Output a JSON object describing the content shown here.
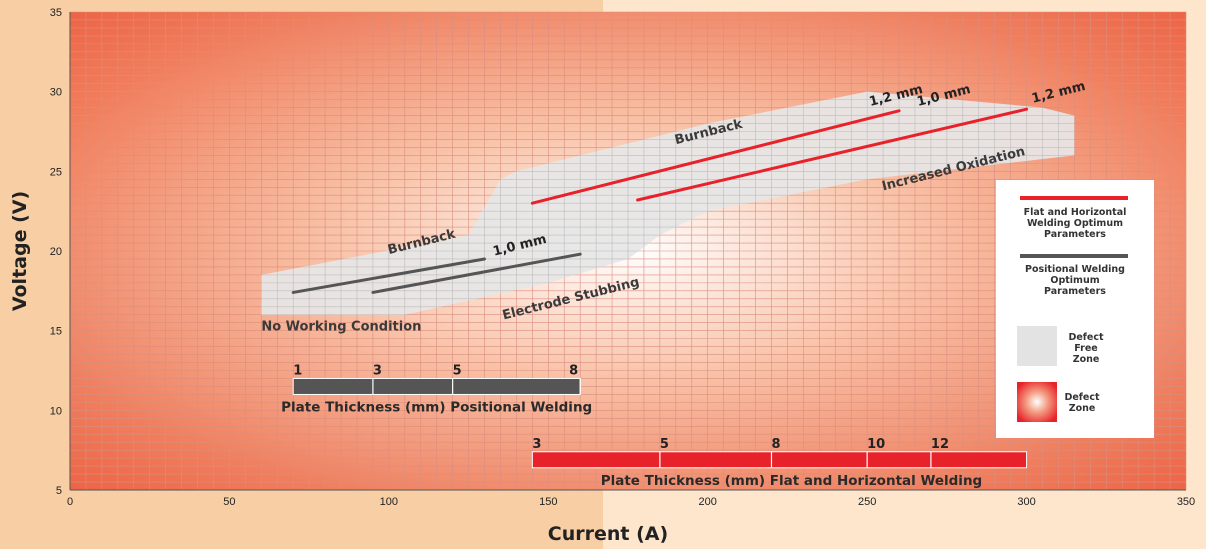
{
  "chart_data": {
    "type": "line",
    "xlabel": "Current (A)",
    "ylabel": "Voltage (V)",
    "xlim": [
      0,
      350
    ],
    "ylim": [
      5,
      35
    ],
    "x_ticks": [
      0,
      50,
      100,
      150,
      200,
      250,
      300,
      350
    ],
    "y_ticks": [
      5,
      10,
      15,
      20,
      25,
      30,
      35
    ],
    "grid": true,
    "defect_free_zone": [
      [
        60,
        18.5
      ],
      [
        60,
        16
      ],
      [
        105,
        16
      ],
      [
        150,
        18
      ],
      [
        175,
        19.5
      ],
      [
        185,
        21
      ],
      [
        200,
        22.5
      ],
      [
        250,
        24.5
      ],
      [
        315,
        26
      ],
      [
        315,
        28.5
      ],
      [
        305,
        29
      ],
      [
        250,
        30
      ],
      [
        200,
        28
      ],
      [
        140,
        25
      ],
      [
        135,
        24.5
      ],
      [
        125,
        21
      ],
      [
        60,
        18.5
      ]
    ],
    "series": [
      {
        "name": "Flat and Horizontal Welding Optimum Parameters",
        "color": "#e8222a",
        "label": "1,2 mm",
        "points": [
          [
            145,
            23
          ],
          [
            260,
            28.8
          ]
        ]
      },
      {
        "name": "Flat and Horizontal Welding Optimum Parameters",
        "color": "#e8222a",
        "label": "1,2 mm",
        "points": [
          [
            178,
            23.2
          ],
          [
            300,
            28.9
          ]
        ]
      },
      {
        "name": "Positional Welding Optimum Parameters",
        "color": "#555555",
        "label": "1,0 mm",
        "points": [
          [
            70,
            17.4
          ],
          [
            130,
            19.5
          ]
        ]
      },
      {
        "name": "Positional Welding Optimum Parameters",
        "color": "#555555",
        "points": [
          [
            95,
            17.4
          ],
          [
            160,
            19.8
          ]
        ]
      }
    ],
    "series_labels": [
      {
        "text": "1,0 mm",
        "x": 133,
        "y": 19.7,
        "angle": -14
      },
      {
        "text": "1,2 mm",
        "x": 251,
        "y": 29.1,
        "angle": -14
      },
      {
        "text": "1,0 mm",
        "x": 266,
        "y": 29.1,
        "angle": -14
      },
      {
        "text": "1,2 mm",
        "x": 302,
        "y": 29.3,
        "angle": -14
      }
    ],
    "annotations": [
      {
        "text": "Burnback",
        "x": 100,
        "y": 19.8,
        "angle": -14
      },
      {
        "text": "Burnback",
        "x": 190,
        "y": 26.7,
        "angle": -14
      },
      {
        "text": "Increased Oxidation",
        "x": 255,
        "y": 23.8,
        "angle": -14
      },
      {
        "text": "Electrode Stubbing",
        "x": 136,
        "y": 15.7,
        "angle": -14
      },
      {
        "text": "No Working Condition",
        "x": 60,
        "y": 15,
        "angle": 0
      }
    ],
    "scales": [
      {
        "title": "Plate Thickness (mm) Positional Welding",
        "color": "#555555",
        "x_range": [
          70,
          160
        ],
        "y": 12,
        "ticks": [
          {
            "label": "1",
            "x": 70
          },
          {
            "label": "3",
            "x": 95
          },
          {
            "label": "5",
            "x": 120
          },
          {
            "label": "8",
            "x": 160
          }
        ]
      },
      {
        "title": "Plate Thickness (mm) Flat and Horizontal Welding",
        "color": "#e8222a",
        "x_range": [
          145,
          300
        ],
        "y": 7.4,
        "ticks": [
          {
            "label": "3",
            "x": 145
          },
          {
            "label": "5",
            "x": 185
          },
          {
            "label": "8",
            "x": 220
          },
          {
            "label": "10",
            "x": 250
          },
          {
            "label": "12",
            "x": 270
          }
        ]
      }
    ],
    "legend": {
      "placement": "right",
      "items": [
        {
          "kind": "line",
          "color": "#e8222a",
          "text": [
            "Flat and Horizontal",
            "Welding Optimum",
            "Parameters"
          ]
        },
        {
          "kind": "line",
          "color": "#555555",
          "text": [
            "Positional Welding",
            "Optimum",
            "Parameters"
          ]
        },
        {
          "kind": "box",
          "color": "#e3e3e3",
          "text": [
            "Defect",
            "Free",
            "Zone"
          ]
        },
        {
          "kind": "radial",
          "color": "#e8222a",
          "text": [
            "Defect",
            "Zone"
          ]
        }
      ]
    }
  }
}
